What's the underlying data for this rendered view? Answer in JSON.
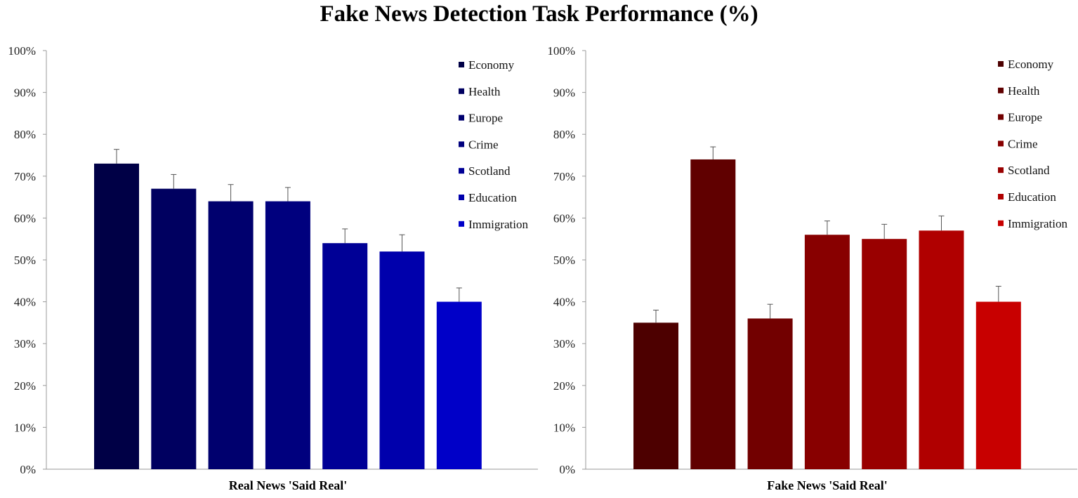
{
  "title": "Fake News Detection Task Performance (%)",
  "chart_data": [
    {
      "type": "bar",
      "xlabel": "Real News 'Said Real'",
      "ylabel": "",
      "ylim": [
        0,
        100
      ],
      "yticks": [
        "0%",
        "10%",
        "20%",
        "30%",
        "40%",
        "50%",
        "60%",
        "70%",
        "80%",
        "90%",
        "100%"
      ],
      "grid": false,
      "legend_position": "top-right",
      "error_bars": true,
      "categories": [
        "Economy",
        "Health",
        "Europe",
        "Crime",
        "Scotland",
        "Education",
        "Immigration"
      ],
      "values": [
        73,
        67,
        64,
        64,
        54,
        52,
        40
      ],
      "errors": [
        3.4,
        3.4,
        4,
        3.3,
        3.4,
        4,
        3.3
      ],
      "colors": [
        "#000046",
        "#000060",
        "#00006e",
        "#00007e",
        "#000096",
        "#0000ac",
        "#0000c8"
      ]
    },
    {
      "type": "bar",
      "xlabel": "Fake News 'Said Real'",
      "ylabel": "",
      "ylim": [
        0,
        100
      ],
      "yticks": [
        "0%",
        "10%",
        "20%",
        "30%",
        "40%",
        "50%",
        "60%",
        "70%",
        "80%",
        "90%",
        "100%"
      ],
      "grid": false,
      "legend_position": "top-right",
      "error_bars": true,
      "categories": [
        "Economy",
        "Health",
        "Europe",
        "Crime",
        "Scotland",
        "Education",
        "Immigration"
      ],
      "values": [
        35,
        74,
        36,
        56,
        55,
        57,
        40
      ],
      "errors": [
        3,
        3,
        3.4,
        3.3,
        3.5,
        3.5,
        3.7
      ],
      "colors": [
        "#4d0000",
        "#600000",
        "#720000",
        "#880000",
        "#990000",
        "#b00000",
        "#c80000"
      ]
    }
  ]
}
